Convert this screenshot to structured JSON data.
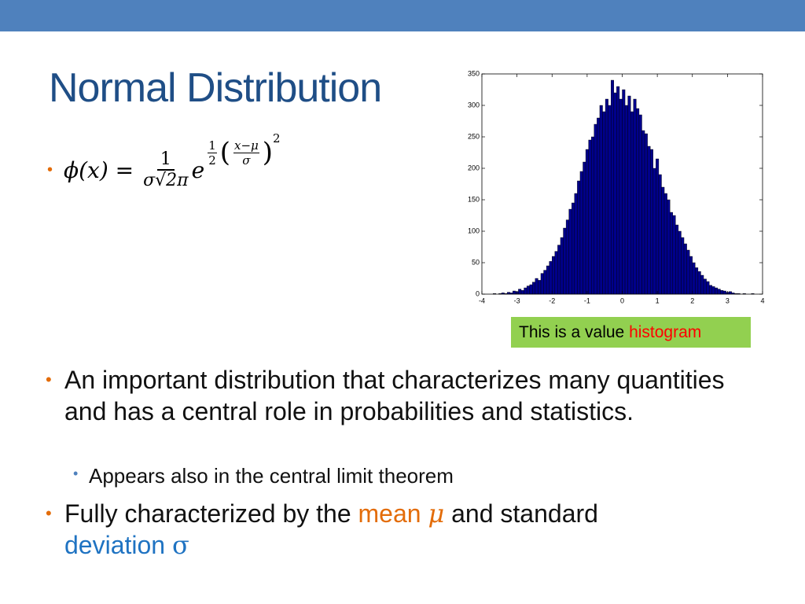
{
  "slide": {
    "title": "Normal Distribution",
    "formula": {
      "lhs": "ϕ(x) =",
      "numerator": "1",
      "denominator": "σ√2π",
      "base": "e",
      "exp_num": "1",
      "exp_den": "2",
      "inner_num": "x−μ",
      "inner_den": "σ",
      "power": "2"
    },
    "caption": [
      "This is a value ",
      "histogram"
    ],
    "bullets": [
      {
        "text": [
          "An important distribution that characterizes many quantities and has a central role in probabilities and statistics."
        ],
        "sub": [
          "Appears also in the central limit theorem"
        ]
      },
      {
        "text": [
          "Fully characterized by the ",
          "mean ",
          "μ",
          " and standard ",
          "deviation ",
          "σ"
        ]
      }
    ]
  },
  "chart_data": {
    "type": "histogram",
    "color": "#00008b",
    "edge_color": "#000000",
    "xlim": [
      -4,
      4
    ],
    "xticks": [
      -4,
      -3,
      -2,
      -1,
      0,
      1,
      2,
      3,
      4
    ],
    "ylim": [
      0,
      350
    ],
    "yticks": [
      0,
      50,
      100,
      150,
      200,
      250,
      300,
      350
    ],
    "bins": [
      -3.84,
      -3.76,
      -3.68,
      -3.6,
      -3.52,
      -3.44,
      -3.36,
      -3.28,
      -3.2,
      -3.12,
      -3.04,
      -2.96,
      -2.88,
      -2.8,
      -2.72,
      -2.64,
      -2.56,
      -2.48,
      -2.4,
      -2.32,
      -2.24,
      -2.16,
      -2.08,
      -2,
      -1.92,
      -1.84,
      -1.76,
      -1.68,
      -1.6,
      -1.52,
      -1.44,
      -1.36,
      -1.28,
      -1.2,
      -1.12,
      -1.04,
      -0.96,
      -0.88,
      -0.8,
      -0.72,
      -0.64,
      -0.56,
      -0.48,
      -0.4,
      -0.32,
      -0.24,
      -0.16,
      -0.08,
      0,
      0.08,
      0.16,
      0.24,
      0.32,
      0.4,
      0.48,
      0.56,
      0.64,
      0.72,
      0.8,
      0.88,
      0.96,
      1.04,
      1.12,
      1.2,
      1.28,
      1.36,
      1.44,
      1.52,
      1.6,
      1.68,
      1.76,
      1.84,
      1.92,
      2,
      2.08,
      2.16,
      2.24,
      2.32,
      2.4,
      2.48,
      2.56,
      2.64,
      2.72,
      2.8,
      2.88,
      2.96,
      3.04,
      3.12,
      3.2,
      3.28,
      3.36,
      3.44,
      3.52,
      3.6,
      3.68,
      3.76,
      3.84
    ],
    "counts": [
      0,
      0,
      1,
      0,
      1,
      2,
      1,
      3,
      2,
      5,
      4,
      8,
      6,
      10,
      13,
      15,
      19,
      25,
      22,
      33,
      38,
      45,
      52,
      60,
      68,
      78,
      90,
      105,
      118,
      135,
      145,
      160,
      180,
      195,
      210,
      230,
      245,
      250,
      270,
      280,
      300,
      290,
      310,
      300,
      340,
      320,
      330,
      310,
      325,
      300,
      315,
      290,
      310,
      295,
      285,
      260,
      255,
      235,
      230,
      200,
      215,
      190,
      170,
      160,
      150,
      130,
      125,
      110,
      100,
      90,
      80,
      70,
      60,
      50,
      42,
      36,
      30,
      24,
      20,
      14,
      12,
      10,
      8,
      6,
      5,
      3,
      4,
      2,
      1,
      1,
      0,
      1,
      0,
      0,
      1,
      0
    ]
  }
}
